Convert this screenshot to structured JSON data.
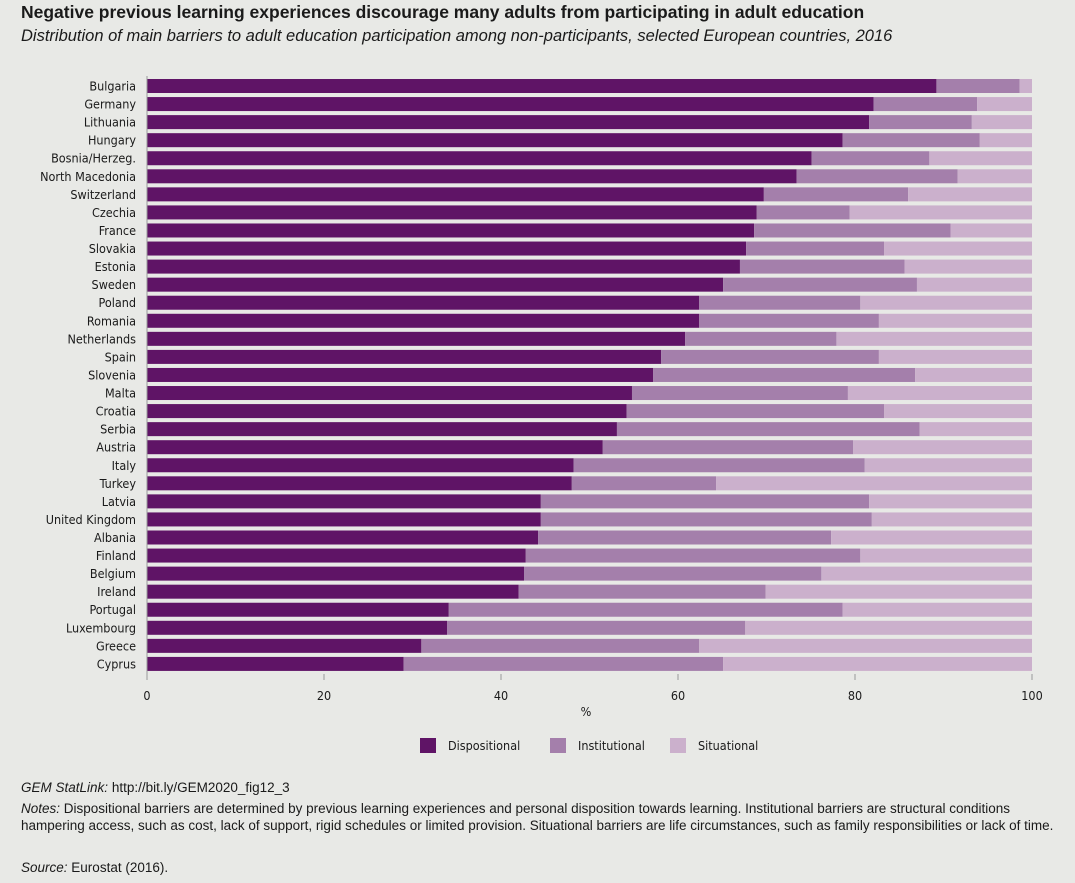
{
  "title": "Negative previous learning experiences discourage many adults from participating in adult education",
  "subtitle": "Distribution of main barriers to adult education participation among non-participants, selected European countries, 2016",
  "chart_data": {
    "type": "bar",
    "orientation": "horizontal",
    "stacked": true,
    "xlabel": "%",
    "xlim": [
      0,
      100
    ],
    "xticks": [
      0,
      20,
      40,
      60,
      80,
      100
    ],
    "grid": false,
    "legend_position": "bottom",
    "categories": [
      "Bulgaria",
      "Germany",
      "Lithuania",
      "Hungary",
      "Bosnia/Herzeg.",
      "North Macedonia",
      "Switzerland",
      "Czechia",
      "France",
      "Slovakia",
      "Estonia",
      "Sweden",
      "Poland",
      "Romania",
      "Netherlands",
      "Spain",
      "Slovenia",
      "Malta",
      "Croatia",
      "Serbia",
      "Austria",
      "Italy",
      "Turkey",
      "Latvia",
      "United Kingdom",
      "Albania",
      "Finland",
      "Belgium",
      "Ireland",
      "Portugal",
      "Luxembourg",
      "Greece",
      "Cyprus"
    ],
    "series": [
      {
        "name": "Dispositional",
        "color": "#5f1466",
        "values": [
          89.2,
          82.1,
          81.6,
          78.6,
          75.1,
          73.4,
          69.7,
          68.9,
          68.6,
          67.7,
          67.0,
          65.1,
          62.4,
          62.4,
          60.8,
          58.1,
          57.2,
          54.8,
          54.2,
          53.1,
          51.5,
          48.2,
          48.0,
          44.5,
          44.5,
          44.2,
          42.8,
          42.6,
          42.0,
          34.1,
          33.9,
          31.0,
          29.0
        ]
      },
      {
        "name": "Institutional",
        "color": "#a47fab",
        "values": [
          9.4,
          11.7,
          11.6,
          15.5,
          13.3,
          18.2,
          16.3,
          10.5,
          22.2,
          15.6,
          18.6,
          21.9,
          18.2,
          20.3,
          17.1,
          24.6,
          29.6,
          24.4,
          29.1,
          34.2,
          28.3,
          32.9,
          16.3,
          37.1,
          37.4,
          33.1,
          37.8,
          33.6,
          27.9,
          44.5,
          33.7,
          31.4,
          36.1
        ]
      },
      {
        "name": "Situational",
        "color": "#cbb0cc",
        "values": [
          1.4,
          6.2,
          6.8,
          5.9,
          11.6,
          8.4,
          14.0,
          20.6,
          9.2,
          16.7,
          14.4,
          13.0,
          19.4,
          17.3,
          22.1,
          17.3,
          13.2,
          20.8,
          16.7,
          12.7,
          20.2,
          18.9,
          35.7,
          18.4,
          18.1,
          22.7,
          19.4,
          23.8,
          30.1,
          21.4,
          32.4,
          37.6,
          34.9
        ]
      }
    ]
  },
  "footer": {
    "statlink_label": "GEM StatLink:",
    "statlink_url": "http://bit.ly/GEM2020_fig12_3",
    "notes_label": "Notes:",
    "notes_text": "Dispositional barriers are determined by previous learning experiences and personal disposition towards learning. Institutional barriers are structural conditions hampering access, such as cost, lack of support, rigid schedules or limited provision. Situational barriers are life circumstances, such as family responsibilities or lack of time.",
    "source_label": "Source:",
    "source_text": "Eurostat (2016)."
  }
}
